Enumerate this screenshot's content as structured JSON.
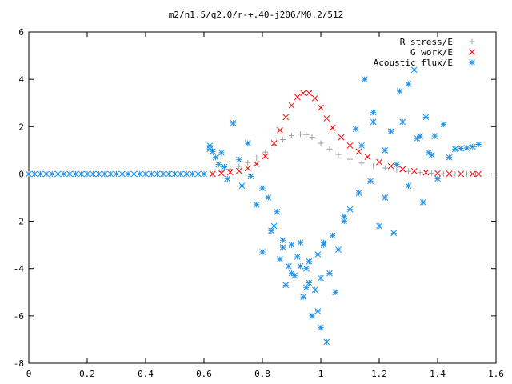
{
  "chart_data": {
    "type": "scatter",
    "title": "m2/n1.5/q2.0/r-+.40-j206/M0.2/512",
    "xlabel": "",
    "ylabel": "",
    "xlim": [
      0,
      1.6
    ],
    "ylim": [
      -8,
      6
    ],
    "x_ticks": [
      "0",
      "0.2",
      "0.4",
      "0.6",
      "0.8",
      "1",
      "1.2",
      "1.4",
      "1.6"
    ],
    "y_ticks": [
      "6",
      "4",
      "2",
      "0",
      "-2",
      "-4",
      "-6",
      "-8"
    ],
    "legend_position": "top-right",
    "series": [
      {
        "name": "R stress/E",
        "color": "#a0a0a0",
        "marker": "plus",
        "x": [
          0.63,
          0.66,
          0.69,
          0.72,
          0.75,
          0.78,
          0.81,
          0.84,
          0.87,
          0.9,
          0.93,
          0.95,
          0.97,
          1.0,
          1.03,
          1.06,
          1.1,
          1.14,
          1.18,
          1.22,
          1.26,
          1.3,
          1.34,
          1.38,
          1.42,
          1.46,
          1.5,
          1.53
        ],
        "y": [
          0.0,
          0.1,
          0.2,
          0.32,
          0.48,
          0.68,
          0.92,
          1.2,
          1.45,
          1.62,
          1.68,
          1.66,
          1.55,
          1.3,
          1.05,
          0.82,
          0.62,
          0.46,
          0.34,
          0.25,
          0.17,
          0.11,
          0.06,
          0.03,
          0.01,
          0.0,
          0.0,
          0.0
        ]
      },
      {
        "name": "G work/E",
        "color": "#ff0000",
        "marker": "cross",
        "x": [
          0.63,
          0.66,
          0.69,
          0.72,
          0.75,
          0.78,
          0.81,
          0.84,
          0.86,
          0.88,
          0.9,
          0.92,
          0.94,
          0.96,
          0.98,
          1.0,
          1.02,
          1.04,
          1.07,
          1.1,
          1.13,
          1.16,
          1.2,
          1.24,
          1.28,
          1.32,
          1.36,
          1.4,
          1.44,
          1.48,
          1.52,
          1.54
        ],
        "y": [
          0.0,
          0.03,
          0.07,
          0.13,
          0.24,
          0.42,
          0.75,
          1.3,
          1.85,
          2.4,
          2.9,
          3.25,
          3.42,
          3.42,
          3.2,
          2.8,
          2.35,
          1.95,
          1.55,
          1.2,
          0.95,
          0.72,
          0.5,
          0.33,
          0.2,
          0.12,
          0.06,
          0.03,
          0.01,
          0.0,
          0.0,
          0.0
        ]
      },
      {
        "name": "Acoustic flux/E",
        "color": "#1e90e8",
        "marker": "star",
        "x": [
          0.0,
          0.02,
          0.04,
          0.06,
          0.08,
          0.1,
          0.12,
          0.14,
          0.16,
          0.18,
          0.2,
          0.22,
          0.24,
          0.26,
          0.28,
          0.3,
          0.32,
          0.34,
          0.36,
          0.38,
          0.4,
          0.42,
          0.44,
          0.46,
          0.48,
          0.5,
          0.52,
          0.54,
          0.56,
          0.58,
          0.6,
          0.62,
          0.62,
          0.63,
          0.64,
          0.65,
          0.66,
          0.67,
          0.68,
          0.7,
          0.72,
          0.73,
          0.75,
          0.76,
          0.78,
          0.8,
          0.8,
          0.82,
          0.83,
          0.85,
          0.86,
          0.87,
          0.88,
          0.89,
          0.9,
          0.91,
          0.92,
          0.93,
          0.94,
          0.95,
          0.96,
          0.97,
          0.98,
          0.99,
          1.0,
          1.0,
          1.01,
          1.02,
          1.03,
          1.05,
          1.06,
          1.08,
          1.1,
          1.12,
          1.13,
          1.15,
          1.17,
          1.18,
          1.2,
          1.22,
          1.24,
          1.25,
          1.27,
          1.28,
          1.3,
          1.32,
          1.33,
          1.35,
          1.37,
          1.39,
          1.4,
          1.42,
          1.44,
          1.46,
          1.48,
          1.5,
          1.52,
          1.54,
          0.84,
          0.87,
          0.93,
          0.96,
          0.99,
          1.01,
          0.9,
          0.95,
          1.04,
          1.08,
          1.14,
          1.18,
          1.22,
          1.26,
          1.3,
          1.34,
          1.36,
          1.38
        ],
        "y": [
          0.0,
          0.0,
          0.0,
          0.0,
          0.0,
          0.0,
          0.0,
          0.0,
          0.0,
          0.0,
          0.0,
          0.0,
          0.0,
          0.0,
          0.0,
          0.0,
          0.0,
          0.0,
          0.0,
          0.0,
          0.0,
          0.0,
          0.0,
          0.0,
          0.0,
          0.0,
          0.0,
          0.0,
          0.0,
          0.0,
          0.0,
          1.2,
          1.05,
          0.95,
          0.7,
          0.4,
          0.9,
          0.3,
          -0.2,
          2.15,
          0.6,
          -0.5,
          1.3,
          -0.1,
          -1.3,
          -0.6,
          -3.3,
          -1.0,
          -2.4,
          -1.6,
          -3.6,
          -2.8,
          -4.7,
          -3.9,
          -3.0,
          -4.3,
          -3.5,
          -2.9,
          -5.2,
          -4.0,
          -3.7,
          -6.0,
          -4.9,
          -5.8,
          -6.5,
          -4.4,
          -2.9,
          -7.1,
          -4.2,
          -5.0,
          -3.2,
          -2.0,
          -1.5,
          1.9,
          -0.8,
          4.0,
          -0.3,
          2.6,
          -2.2,
          -1.0,
          1.8,
          -2.5,
          3.5,
          2.2,
          -0.5,
          4.4,
          1.5,
          -1.2,
          0.9,
          1.6,
          -0.2,
          2.1,
          0.7,
          1.05,
          1.08,
          1.1,
          1.15,
          1.25,
          -2.2,
          -3.1,
          -3.9,
          -4.6,
          -3.4,
          -3.0,
          -4.2,
          -4.8,
          -2.6,
          -1.8,
          1.2,
          2.2,
          1.0,
          0.4,
          3.8,
          1.6,
          2.4,
          0.8
        ]
      }
    ]
  }
}
